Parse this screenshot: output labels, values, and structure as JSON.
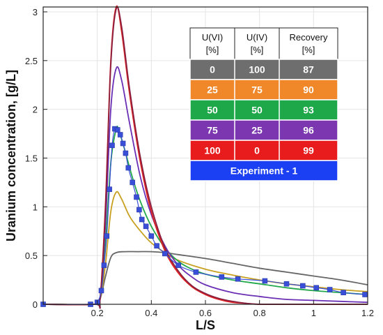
{
  "chart_data": {
    "type": "line",
    "xlabel": "L/S",
    "ylabel": "Uranium concentration, [g/L]",
    "xlim": [
      0,
      1.2
    ],
    "ylim": [
      0,
      3.05
    ],
    "x_ticks": [
      {
        "value": 0.2,
        "label": "0.2"
      },
      {
        "value": 0.4,
        "label": "0.4"
      },
      {
        "value": 0.6,
        "label": "0.6"
      },
      {
        "value": 0.8,
        "label": "0.8"
      },
      {
        "value": 1.0,
        "label": "1"
      },
      {
        "value": 1.2,
        "label": "1.2"
      }
    ],
    "y_ticks": [
      {
        "value": 0,
        "label": "0"
      },
      {
        "value": 0.5,
        "label": "0.5"
      },
      {
        "value": 1.0,
        "label": "1"
      },
      {
        "value": 1.5,
        "label": "1.5"
      },
      {
        "value": 2.0,
        "label": "2"
      },
      {
        "value": 2.5,
        "label": "2.5"
      },
      {
        "value": 3.0,
        "label": "3"
      }
    ],
    "grid": true,
    "series": [
      {
        "color": "#666666",
        "x": [
          0,
          0.19,
          0.21,
          0.23,
          0.25,
          0.27,
          0.3,
          0.35,
          0.4,
          0.45,
          0.5,
          0.6,
          0.7,
          0.8,
          0.9,
          1.0,
          1.1,
          1.2
        ],
        "y": [
          0,
          0,
          0.05,
          0.28,
          0.48,
          0.53,
          0.54,
          0.54,
          0.54,
          0.53,
          0.51,
          0.47,
          0.42,
          0.37,
          0.33,
          0.29,
          0.25,
          0.2
        ]
      },
      {
        "color": "#c8a020",
        "x": [
          0,
          0.19,
          0.21,
          0.23,
          0.25,
          0.27,
          0.29,
          0.32,
          0.36,
          0.4,
          0.45,
          0.5,
          0.6,
          0.7,
          0.8,
          0.9,
          1.0,
          1.1,
          1.2
        ],
        "y": [
          0,
          0,
          0.05,
          0.4,
          0.95,
          1.15,
          1.08,
          0.9,
          0.75,
          0.63,
          0.53,
          0.45,
          0.36,
          0.3,
          0.25,
          0.21,
          0.18,
          0.15,
          0.13
        ]
      },
      {
        "color": "#22a84a",
        "x": [
          0,
          0.19,
          0.21,
          0.23,
          0.25,
          0.27,
          0.28,
          0.3,
          0.33,
          0.36,
          0.4,
          0.45,
          0.5,
          0.55,
          0.6,
          0.7,
          0.8,
          0.9,
          1.0,
          1.1,
          1.2
        ],
        "y": [
          0,
          0,
          0.05,
          0.6,
          1.45,
          1.8,
          1.78,
          1.6,
          1.3,
          1.05,
          0.8,
          0.58,
          0.44,
          0.36,
          0.31,
          0.25,
          0.21,
          0.17,
          0.14,
          0.12,
          0.1
        ]
      },
      {
        "color": "#6a2fb5",
        "x": [
          0,
          0.19,
          0.21,
          0.23,
          0.25,
          0.27,
          0.29,
          0.32,
          0.36,
          0.4,
          0.45,
          0.5,
          0.55,
          0.6,
          0.7,
          0.8,
          0.9,
          1.0,
          1.1,
          1.2
        ],
        "y": [
          0,
          0,
          0.05,
          0.8,
          2.0,
          2.42,
          2.3,
          1.85,
          1.3,
          0.92,
          0.6,
          0.4,
          0.28,
          0.2,
          0.12,
          0.08,
          0.05,
          0.04,
          0.03,
          0.02
        ]
      },
      {
        "color": "#e02020",
        "x": [
          0,
          0.19,
          0.21,
          0.23,
          0.25,
          0.27,
          0.29,
          0.32,
          0.36,
          0.4,
          0.45,
          0.5,
          0.55,
          0.6,
          0.65,
          0.7,
          0.75,
          0.8,
          0.9,
          1.0,
          1.2
        ],
        "y": [
          0,
          0,
          0.05,
          1.0,
          2.5,
          3.05,
          2.8,
          2.15,
          1.45,
          0.95,
          0.55,
          0.32,
          0.18,
          0.1,
          0.05,
          0.02,
          0.01,
          0,
          0,
          0,
          0
        ]
      },
      {
        "color": "#8a2040",
        "x": [
          0,
          0.19,
          0.21,
          0.23,
          0.25,
          0.27,
          0.29,
          0.32,
          0.36,
          0.4,
          0.45,
          0.5,
          0.55,
          0.6,
          0.65,
          0.7,
          0.75,
          0.8,
          0.9,
          1.0,
          1.2
        ],
        "y": [
          0,
          0,
          0.04,
          0.95,
          2.45,
          3.03,
          2.85,
          2.2,
          1.5,
          1.0,
          0.58,
          0.34,
          0.19,
          0.11,
          0.06,
          0.03,
          0.01,
          0,
          0,
          0,
          0
        ]
      }
    ],
    "experiment": {
      "color": "#3a4fd8",
      "x": [
        0.0,
        0.175,
        0.2,
        0.215,
        0.225,
        0.235,
        0.245,
        0.255,
        0.265,
        0.275,
        0.285,
        0.295,
        0.305,
        0.315,
        0.33,
        0.345,
        0.355,
        0.365,
        0.38,
        0.4,
        0.42,
        0.45,
        0.5,
        0.565,
        0.66,
        0.72,
        0.82,
        0.9,
        0.96,
        1.01,
        1.06,
        1.11,
        1.19
      ],
      "y": [
        0,
        0,
        0.02,
        0.14,
        0.4,
        0.7,
        1.18,
        1.63,
        1.8,
        1.79,
        1.74,
        1.65,
        1.55,
        1.4,
        1.25,
        1.1,
        0.97,
        0.87,
        0.8,
        0.7,
        0.6,
        0.52,
        0.4,
        0.33,
        0.28,
        0.26,
        0.24,
        0.21,
        0.19,
        0.17,
        0.15,
        0.12,
        0.1
      ]
    },
    "legend_table": {
      "headers": [
        {
          "line1": "U(VI)",
          "line2": "[%]"
        },
        {
          "line1": "U(IV)",
          "line2": "[%]"
        },
        {
          "line1": "Recovery",
          "line2": "[%]"
        }
      ],
      "rows": [
        {
          "color": "#6e6e6e",
          "cells": [
            "0",
            "100",
            "87"
          ]
        },
        {
          "color": "#f0882a",
          "cells": [
            "25",
            "75",
            "90"
          ]
        },
        {
          "color": "#1fa84a",
          "cells": [
            "50",
            "50",
            "93"
          ]
        },
        {
          "color": "#7b36b0",
          "cells": [
            "75",
            "25",
            "96"
          ]
        },
        {
          "color": "#e81c1c",
          "cells": [
            "100",
            "0",
            "99"
          ]
        }
      ],
      "footer": {
        "color": "#1b3ff2",
        "text": "Experiment - 1"
      }
    }
  }
}
